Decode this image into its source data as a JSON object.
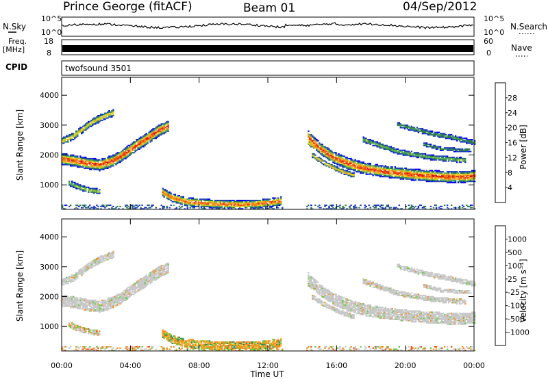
{
  "header": {
    "station": "Prince George (fitACF)",
    "beam": "Beam 01",
    "date": "04/Sep/2012"
  },
  "top_panels": {
    "nsky_label": "N.Sky",
    "nsearch_label": "N.Search",
    "sky_ticks": [
      "10^5",
      "10^0"
    ],
    "search_ticks": [
      "10^5",
      "10^0"
    ],
    "freq_label": "Freq.",
    "freq_unit": "[MHz]",
    "freq_ticks": [
      "18",
      "8"
    ],
    "nave_label": "Nave",
    "nave_ticks": [
      "60",
      "0"
    ],
    "cpid_label": "CPID",
    "cpid_value": "twofsound 3501"
  },
  "chart_data": [
    {
      "type": "heatmap",
      "name": "power",
      "ylabel": "Slant Range [km]",
      "ylim": [
        180,
        4600
      ],
      "yticks": [
        1000,
        2000,
        3000,
        4000
      ],
      "xlim": [
        0,
        24
      ],
      "colorbar": {
        "label": "Power [dB]",
        "ticks": [
          "28",
          "24",
          "20",
          "16",
          "12",
          "8",
          "4"
        ],
        "colors": [
          "#0000ff",
          "#1f3fbf",
          "#2e7d4f",
          "#58b05a",
          "#b8cc33",
          "#f5d020",
          "#f5a623",
          "#f07818",
          "#e84010",
          "#e01010"
        ]
      },
      "bands": [
        {
          "t": [
            0.0,
            0.8,
            1.5,
            2.2,
            3.0,
            3.7,
            4.3,
            5.0,
            5.6,
            6.2
          ],
          "r": [
            1850,
            1780,
            1700,
            1650,
            1800,
            2050,
            2300,
            2550,
            2800,
            2950
          ],
          "w": 160,
          "peak": 28
        },
        {
          "t": [
            0.0,
            0.6,
            1.2,
            1.8,
            2.5,
            3.0
          ],
          "r": [
            2450,
            2600,
            2850,
            3100,
            3300,
            3400
          ],
          "w": 110,
          "peak": 18
        },
        {
          "t": [
            0.4,
            1.0,
            1.6,
            2.2
          ],
          "r": [
            1050,
            900,
            800,
            760
          ],
          "w": 90,
          "peak": 14
        },
        {
          "t": [
            5.8,
            6.4,
            7.2,
            8.0,
            8.8,
            9.6,
            10.4,
            11.2,
            12.0,
            12.8
          ],
          "r": [
            750,
            550,
            420,
            380,
            350,
            330,
            320,
            340,
            380,
            450
          ],
          "w": 120,
          "peak": 26
        },
        {
          "t": [
            14.3,
            15.0,
            15.8,
            16.6,
            17.5,
            18.5,
            19.5,
            20.5,
            21.5,
            22.5,
            23.5,
            24.0
          ],
          "r": [
            2600,
            2200,
            1900,
            1700,
            1550,
            1450,
            1380,
            1320,
            1280,
            1250,
            1250,
            1280
          ],
          "w": 160,
          "peak": 28
        },
        {
          "t": [
            14.3,
            15.2,
            16.2,
            17.2,
            18.2,
            19.2,
            20.2,
            21.2,
            22.2,
            23.2,
            24.0
          ],
          "r": [
            2400,
            2100,
            1850,
            1650,
            1500,
            1400,
            1300,
            1250,
            1220,
            1200,
            1220
          ],
          "w": 80,
          "peak": 22
        },
        {
          "t": [
            17.5,
            18.5,
            19.5,
            20.5,
            21.5,
            22.5,
            23.5
          ],
          "r": [
            2500,
            2300,
            2100,
            2000,
            1900,
            1850,
            1800
          ],
          "w": 90,
          "peak": 12
        },
        {
          "t": [
            19.5,
            20.5,
            21.5,
            22.5,
            23.2,
            24.0
          ],
          "r": [
            3000,
            2850,
            2700,
            2600,
            2500,
            2400
          ],
          "w": 90,
          "peak": 10
        },
        {
          "t": [
            21.0,
            22.0,
            23.0,
            23.8
          ],
          "r": [
            2350,
            2200,
            2150,
            2150
          ],
          "w": 70,
          "peak": 9
        },
        {
          "t": [
            14.5,
            15.3,
            16.2,
            17.0
          ],
          "r": [
            2000,
            1700,
            1450,
            1300
          ],
          "w": 70,
          "peak": 20
        }
      ]
    },
    {
      "type": "heatmap",
      "name": "velocity",
      "ylabel": "Slant Range [km]",
      "ylim": [
        180,
        4600
      ],
      "yticks": [
        1000,
        2000,
        3000,
        4000
      ],
      "xlim": [
        0,
        24
      ],
      "xticks": [
        "00:00",
        "04:00",
        "08:00",
        "12:00",
        "16:00",
        "20:00",
        "00:00"
      ],
      "xlabel": "Time UT",
      "colorbar": {
        "label": "Velocity [m s⁻¹]",
        "ticks": [
          "1000",
          "500",
          "100",
          "25",
          "-25",
          "-100",
          "-500",
          "-1000"
        ],
        "colors": [
          "#1030c0",
          "#2f5fb0",
          "#2e8b57",
          "#66cc44",
          "#c8c8c8",
          "#c8c8c8",
          "#f5c040",
          "#f09020",
          "#e85010",
          "#e01010"
        ]
      }
    }
  ]
}
